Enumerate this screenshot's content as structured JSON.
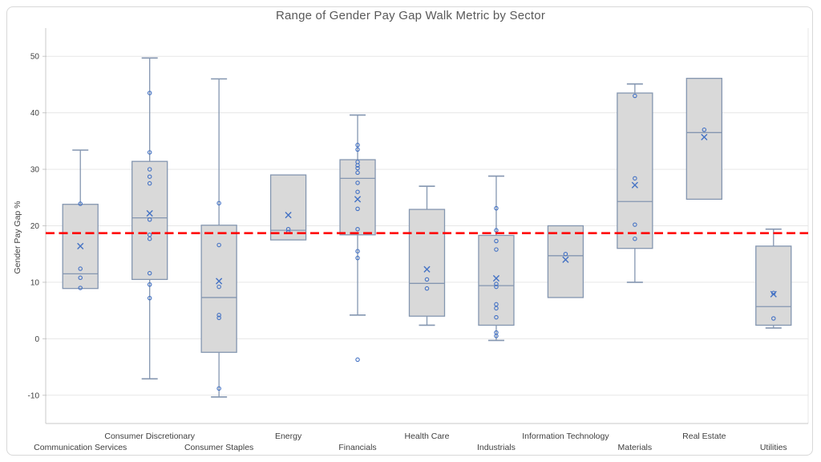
{
  "chart_data": {
    "type": "boxplot",
    "title": "Range of Gender Pay Gap Walk Metric by Sector",
    "xlabel": "",
    "ylabel": "Gender Pay Gap %",
    "ylim": [
      -15,
      55
    ],
    "yticks": [
      -10,
      0,
      10,
      20,
      30,
      40,
      50
    ],
    "grid": true,
    "legend": "none",
    "label_layout": "staggered-two-rows",
    "reference_line": {
      "value": 18.7,
      "style": "dashed",
      "color": "#ff0000"
    },
    "series": [
      {
        "sector": "Communication Services",
        "whisker_low": 8.9,
        "q1": 8.9,
        "median": 11.5,
        "q3": 23.8,
        "whisker_high": 33.4,
        "mean": 16.4,
        "points": [
          23.9,
          12.4,
          10.8,
          9.0
        ]
      },
      {
        "sector": "Consumer Discretionary",
        "whisker_low": -7.1,
        "q1": 10.5,
        "median": 21.4,
        "q3": 31.4,
        "whisker_high": 49.7,
        "mean": 22.2,
        "points": [
          43.5,
          33.0,
          30.0,
          28.7,
          27.5,
          21.1,
          18.4,
          17.7,
          11.6,
          9.6,
          7.2
        ]
      },
      {
        "sector": "Consumer Staples",
        "whisker_low": -10.3,
        "q1": -2.4,
        "median": 7.3,
        "q3": 20.1,
        "whisker_high": 46.0,
        "mean": 10.2,
        "points": [
          24.0,
          16.6,
          9.2,
          4.2,
          3.7,
          -8.8
        ]
      },
      {
        "sector": "Energy",
        "whisker_low": 17.5,
        "q1": 17.5,
        "median": 19.2,
        "q3": 29.0,
        "whisker_high": 29.0,
        "mean": 21.9,
        "points": [
          19.4,
          18.9
        ]
      },
      {
        "sector": "Financials",
        "whisker_low": 4.2,
        "q1": 18.4,
        "median": 28.4,
        "q3": 31.7,
        "whisker_high": 39.6,
        "mean": 24.7,
        "points": [
          34.3,
          33.5,
          31.3,
          30.7,
          30.2,
          29.4,
          27.6,
          26.0,
          23.0,
          19.4,
          15.5,
          14.3,
          -3.7
        ]
      },
      {
        "sector": "Health Care",
        "whisker_low": 2.4,
        "q1": 4.0,
        "median": 9.8,
        "q3": 22.9,
        "whisker_high": 27.0,
        "mean": 12.3,
        "points": [
          10.5,
          8.9
        ]
      },
      {
        "sector": "Industrials",
        "whisker_low": -0.3,
        "q1": 2.4,
        "median": 9.4,
        "q3": 18.3,
        "whisker_high": 28.8,
        "mean": 10.7,
        "points": [
          23.1,
          19.2,
          17.3,
          15.8,
          9.7,
          9.2,
          6.1,
          5.4,
          3.8,
          1.1,
          0.5
        ]
      },
      {
        "sector": "Information Technology",
        "whisker_low": 7.3,
        "q1": 7.3,
        "median": 14.7,
        "q3": 20.0,
        "whisker_high": 20.0,
        "mean": 14.0,
        "points": [
          15.0
        ]
      },
      {
        "sector": "Materials",
        "whisker_low": 10.0,
        "q1": 16.0,
        "median": 24.3,
        "q3": 43.5,
        "whisker_high": 45.1,
        "mean": 27.2,
        "points": [
          43.0,
          28.4,
          20.2,
          17.7
        ]
      },
      {
        "sector": "Real Estate",
        "whisker_low": 24.7,
        "q1": 24.7,
        "median": 36.5,
        "q3": 46.1,
        "whisker_high": 46.1,
        "mean": 35.7,
        "points": [
          37.0
        ]
      },
      {
        "sector": "Utilities",
        "whisker_low": 1.9,
        "q1": 2.4,
        "median": 5.7,
        "q3": 16.4,
        "whisker_high": 19.4,
        "mean": 7.9,
        "points": [
          8.1,
          3.6
        ]
      }
    ]
  },
  "colors": {
    "box_fill": "#d9d9d9",
    "box_border": "#8496b0",
    "whisker": "#8496b0",
    "marker": "#4472c4",
    "reference_line": "#ff0000",
    "gridline": "#e7e7e7",
    "axis_line": "#c8c8c8",
    "label_text": "#404040",
    "title_text": "#595959",
    "chart_border": "#d8d8d8"
  }
}
